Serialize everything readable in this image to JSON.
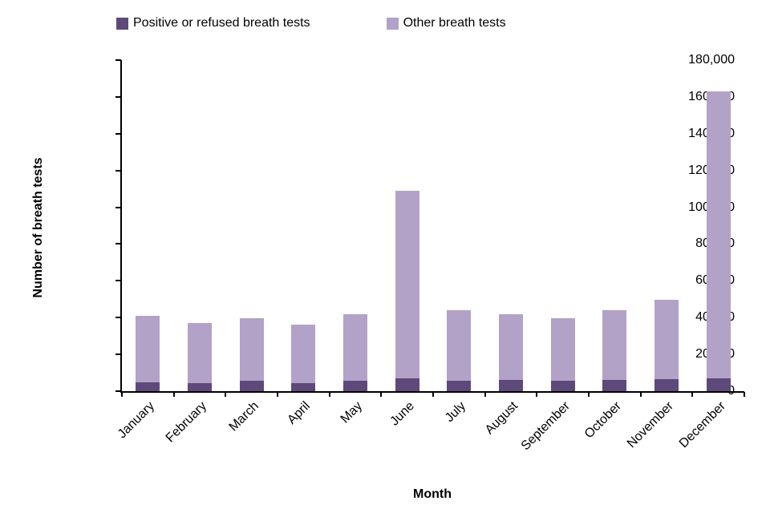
{
  "chart_data": {
    "type": "bar",
    "stacked": true,
    "title": "",
    "xlabel": "Month",
    "ylabel": "Number of breath tests",
    "ylim": [
      0,
      180000
    ],
    "ytick_step": 20000,
    "grid": false,
    "legend_position": "top",
    "categories": [
      "January",
      "February",
      "March",
      "April",
      "May",
      "June",
      "July",
      "August",
      "September",
      "October",
      "November",
      "December"
    ],
    "series": [
      {
        "name": "Positive or refused breath tests",
        "color": "#5f497a",
        "values": [
          5000,
          4500,
          5500,
          4500,
          5500,
          7000,
          5500,
          6000,
          5500,
          6000,
          6500,
          7000
        ]
      },
      {
        "name": "Other breath tests",
        "color": "#b2a2c7",
        "values": [
          36000,
          32500,
          34000,
          31500,
          36500,
          102000,
          38500,
          36000,
          34000,
          38000,
          43000,
          156000
        ]
      }
    ]
  },
  "colors": {
    "axis": "#000000",
    "text": "#000000",
    "background": "#ffffff"
  }
}
